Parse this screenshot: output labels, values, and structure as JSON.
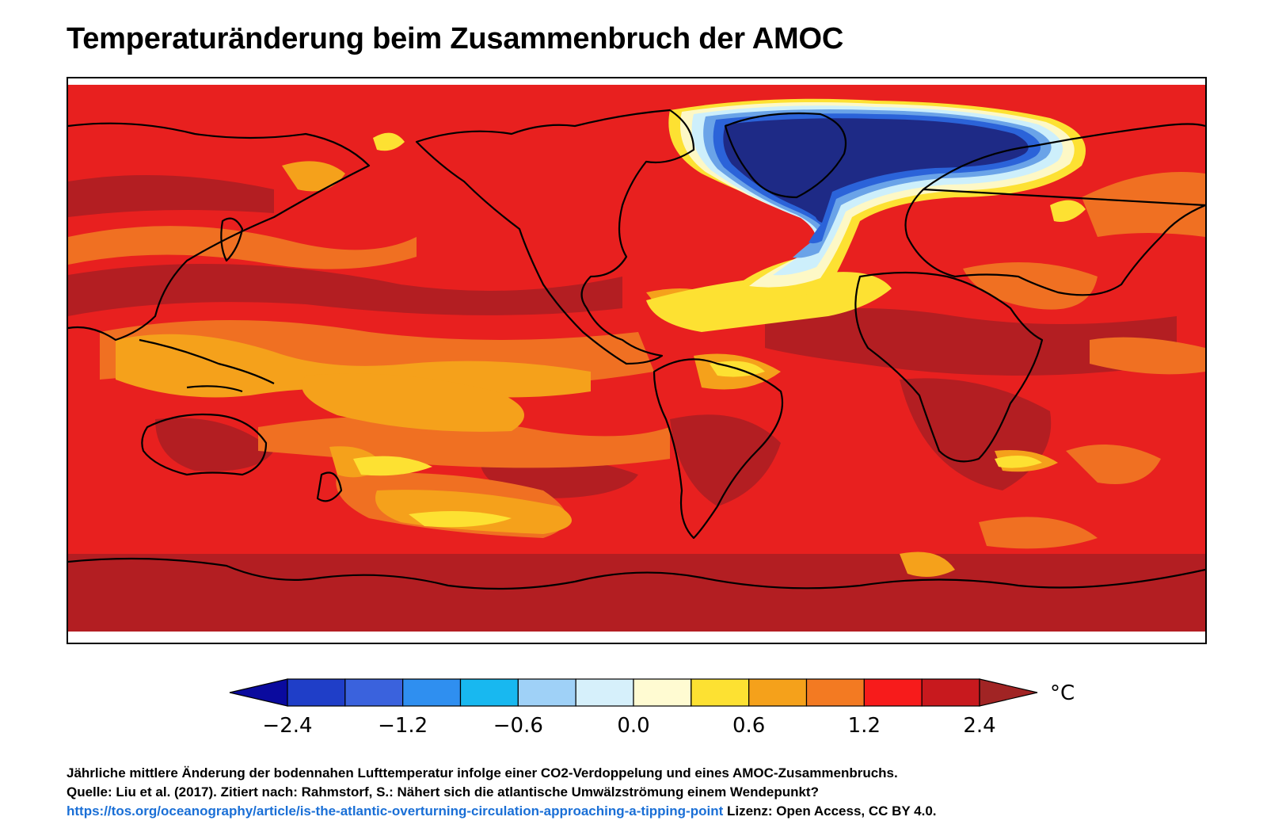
{
  "title": "Temperaturänderung beim Zusammenbruch der AMOC",
  "colors": {
    "deep_red": "#b31e22",
    "red": "#e8201f",
    "orange_red": "#f07022",
    "orange": "#f5a11b",
    "yellow": "#fde132",
    "cream": "#fdf8c6",
    "light_blue": "#cdeffb",
    "blue": "#2b63d9",
    "navy": "#1e2a86"
  },
  "colorbar": {
    "unit": "°C",
    "ticks": [
      "−2.4",
      "−1.2",
      "−0.6",
      "0.0",
      "0.6",
      "1.2",
      "2.4"
    ],
    "bins": [
      {
        "color": "#0a0a9e"
      },
      {
        "color": "#1f3ec8"
      },
      {
        "color": "#3a62dd"
      },
      {
        "color": "#2f8ff0"
      },
      {
        "color": "#18b8f0"
      },
      {
        "color": "#9fd1f7"
      },
      {
        "color": "#d6f0fb"
      },
      {
        "color": "#fffbd2"
      },
      {
        "color": "#fde132"
      },
      {
        "color": "#f5a11b"
      },
      {
        "color": "#f37a22"
      },
      {
        "color": "#f71b1b"
      },
      {
        "color": "#c8191e"
      },
      {
        "color": "#a12424"
      }
    ]
  },
  "caption": {
    "line1": "Jährliche mittlere Änderung der bodennahen Lufttemperatur infolge einer CO2-Verdoppelung und eines AMOC-Zusammenbruchs.",
    "line2": "Quelle: Liu et al. (2017). Zitiert nach: Rahmstorf, S.: Nähert sich die atlantische Umwälzströmung einem Wendepunkt?",
    "link": "https://tos.org/oceanography/article/is-the-atlantic-overturning-circulation-approaching-a-tipping-point",
    "license": " Lizenz: Open Access, CC BY 4.0."
  }
}
